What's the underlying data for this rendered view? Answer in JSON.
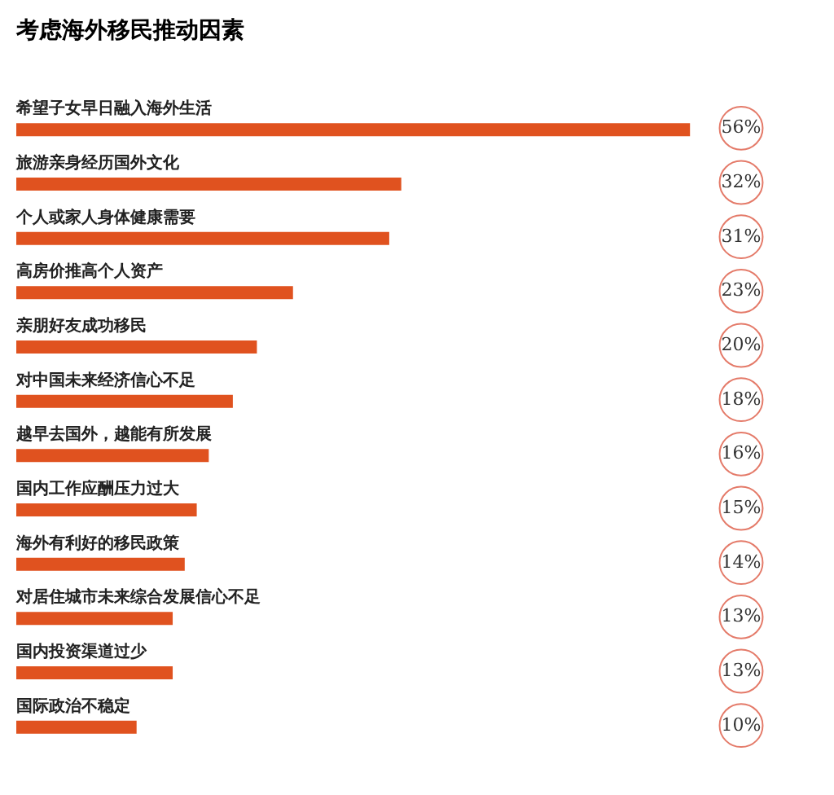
{
  "chart_data": {
    "type": "bar",
    "orientation": "horizontal",
    "title": "考虑海外移民推动因素",
    "categories": [
      "希望子女早日融入海外生活",
      "旅游亲身经历国外文化",
      "个人或家人身体健康需要",
      "高房价推高个人资产",
      "亲朋好友成功移民",
      "对中国未来经济信心不足",
      "越早去国外，越能有所发展",
      "国内工作应酬压力过大",
      "海外有利好的移民政策",
      "对居住城市未来综合发展信心不足",
      "国内投资渠道过少",
      "国际政治不稳定"
    ],
    "values": [
      56,
      32,
      31,
      23,
      20,
      18,
      16,
      15,
      14,
      13,
      13,
      10
    ],
    "value_labels": [
      "56%",
      "32%",
      "31%",
      "23%",
      "20%",
      "18%",
      "16%",
      "15%",
      "14%",
      "13%",
      "13%",
      "10%"
    ],
    "color": "#e0521f"
  }
}
